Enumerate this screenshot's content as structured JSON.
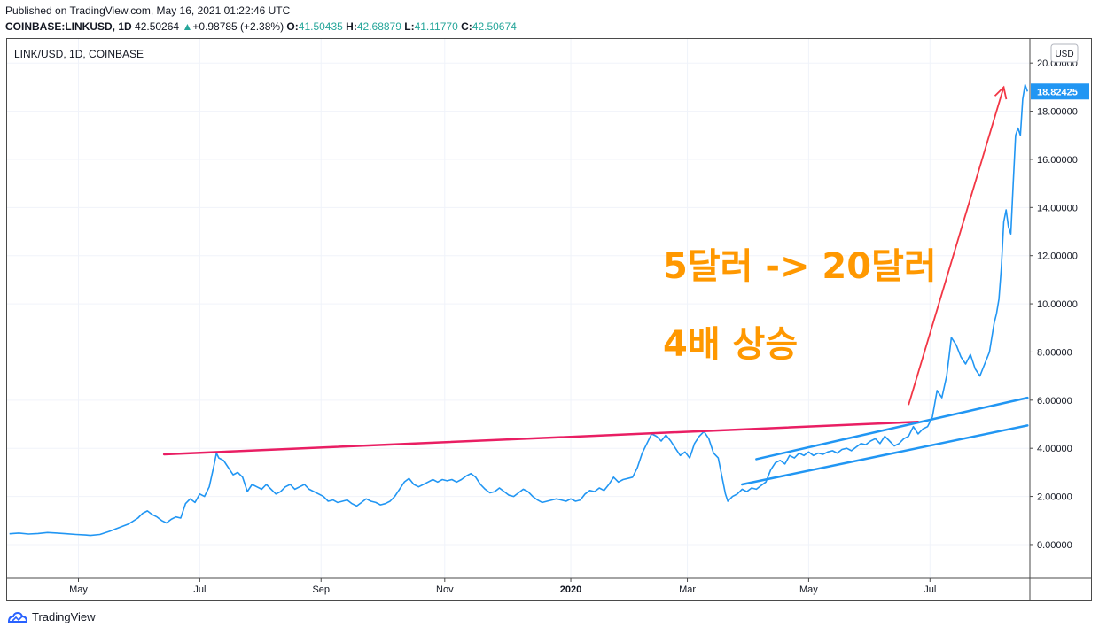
{
  "header": {
    "published": "Published on TradingView.com, May 16, 2021 01:22:46 UTC",
    "symbol": "COINBASE:LINKUSD, 1D",
    "last": "42.50264",
    "change_icon": "triangle-up-icon",
    "change": "+0.98785 (+2.38%)",
    "o_label": "O:",
    "o": "41.50435",
    "h_label": "H:",
    "h": "42.68879",
    "l_label": "L:",
    "l": "41.11770",
    "c_label": "C:",
    "c": "42.50674"
  },
  "colors": {
    "price_line": "#2196f3",
    "resistance_line": "#e91e63",
    "arrow": "#f23645",
    "annotation": "#ff9800",
    "grid": "#f0f3fa",
    "axis_text": "#131722"
  },
  "chart_data": {
    "type": "line",
    "title": "LINK/USD, 1D, COINBASE",
    "currency": "USD",
    "ylabel": "",
    "xlabel": "",
    "ylim": [
      -1.4,
      21.0
    ],
    "y_ticks": [
      "0.00000",
      "2.00000",
      "4.00000",
      "6.00000",
      "8.00000",
      "10.00000",
      "12.00000",
      "14.00000",
      "16.00000",
      "18.00000",
      "20.00000"
    ],
    "x_ticks": [
      "May",
      "Jul",
      "Sep",
      "Nov",
      "2020",
      "Mar",
      "May",
      "Jul"
    ],
    "last_price_label": "18.82425",
    "series": [
      {
        "values": [
          [
            0,
            0.45
          ],
          [
            4,
            0.48
          ],
          [
            8,
            0.44
          ],
          [
            12,
            0.46
          ],
          [
            16,
            0.5
          ],
          [
            20,
            0.48
          ],
          [
            24,
            0.45
          ],
          [
            28,
            0.42
          ],
          [
            32,
            0.4
          ],
          [
            34,
            0.38
          ],
          [
            38,
            0.42
          ],
          [
            42,
            0.55
          ],
          [
            46,
            0.7
          ],
          [
            50,
            0.85
          ],
          [
            54,
            1.1
          ],
          [
            56,
            1.3
          ],
          [
            58,
            1.4
          ],
          [
            60,
            1.25
          ],
          [
            62,
            1.15
          ],
          [
            64,
            1.0
          ],
          [
            66,
            0.9
          ],
          [
            68,
            1.05
          ],
          [
            70,
            1.15
          ],
          [
            72,
            1.1
          ],
          [
            74,
            1.7
          ],
          [
            76,
            1.9
          ],
          [
            78,
            1.75
          ],
          [
            80,
            2.1
          ],
          [
            82,
            2.0
          ],
          [
            84,
            2.4
          ],
          [
            86,
            3.3
          ],
          [
            87,
            3.8
          ],
          [
            88,
            3.6
          ],
          [
            90,
            3.5
          ],
          [
            92,
            3.2
          ],
          [
            94,
            2.9
          ],
          [
            96,
            3.0
          ],
          [
            98,
            2.8
          ],
          [
            100,
            2.2
          ],
          [
            102,
            2.5
          ],
          [
            104,
            2.4
          ],
          [
            106,
            2.3
          ],
          [
            108,
            2.5
          ],
          [
            110,
            2.3
          ],
          [
            112,
            2.1
          ],
          [
            114,
            2.2
          ],
          [
            116,
            2.4
          ],
          [
            118,
            2.5
          ],
          [
            120,
            2.3
          ],
          [
            122,
            2.4
          ],
          [
            124,
            2.5
          ],
          [
            126,
            2.3
          ],
          [
            128,
            2.2
          ],
          [
            130,
            2.1
          ],
          [
            132,
            2.0
          ],
          [
            134,
            1.8
          ],
          [
            136,
            1.85
          ],
          [
            138,
            1.75
          ],
          [
            140,
            1.8
          ],
          [
            142,
            1.85
          ],
          [
            144,
            1.7
          ],
          [
            146,
            1.6
          ],
          [
            148,
            1.75
          ],
          [
            150,
            1.9
          ],
          [
            152,
            1.8
          ],
          [
            154,
            1.75
          ],
          [
            156,
            1.65
          ],
          [
            158,
            1.7
          ],
          [
            160,
            1.8
          ],
          [
            162,
            2.0
          ],
          [
            164,
            2.3
          ],
          [
            166,
            2.6
          ],
          [
            168,
            2.75
          ],
          [
            170,
            2.5
          ],
          [
            172,
            2.4
          ],
          [
            174,
            2.5
          ],
          [
            176,
            2.6
          ],
          [
            178,
            2.7
          ],
          [
            180,
            2.6
          ],
          [
            182,
            2.7
          ],
          [
            184,
            2.65
          ],
          [
            186,
            2.7
          ],
          [
            188,
            2.6
          ],
          [
            190,
            2.7
          ],
          [
            192,
            2.85
          ],
          [
            194,
            2.95
          ],
          [
            196,
            2.8
          ],
          [
            198,
            2.5
          ],
          [
            200,
            2.3
          ],
          [
            202,
            2.15
          ],
          [
            204,
            2.2
          ],
          [
            206,
            2.35
          ],
          [
            208,
            2.2
          ],
          [
            210,
            2.05
          ],
          [
            212,
            2.0
          ],
          [
            214,
            2.15
          ],
          [
            216,
            2.3
          ],
          [
            218,
            2.2
          ],
          [
            220,
            2.0
          ],
          [
            222,
            1.85
          ],
          [
            224,
            1.75
          ],
          [
            226,
            1.8
          ],
          [
            228,
            1.85
          ],
          [
            230,
            1.9
          ],
          [
            232,
            1.85
          ],
          [
            234,
            1.8
          ],
          [
            236,
            1.9
          ],
          [
            238,
            1.8
          ],
          [
            240,
            1.85
          ],
          [
            242,
            2.1
          ],
          [
            244,
            2.25
          ],
          [
            246,
            2.2
          ],
          [
            248,
            2.35
          ],
          [
            250,
            2.25
          ],
          [
            252,
            2.5
          ],
          [
            254,
            2.8
          ],
          [
            256,
            2.6
          ],
          [
            258,
            2.7
          ],
          [
            260,
            2.75
          ],
          [
            262,
            2.8
          ],
          [
            264,
            3.2
          ],
          [
            266,
            3.8
          ],
          [
            268,
            4.2
          ],
          [
            270,
            4.6
          ],
          [
            272,
            4.5
          ],
          [
            274,
            4.3
          ],
          [
            276,
            4.55
          ],
          [
            278,
            4.3
          ],
          [
            280,
            4.0
          ],
          [
            282,
            3.7
          ],
          [
            284,
            3.85
          ],
          [
            286,
            3.6
          ],
          [
            288,
            4.2
          ],
          [
            290,
            4.5
          ],
          [
            292,
            4.7
          ],
          [
            294,
            4.4
          ],
          [
            296,
            3.8
          ],
          [
            298,
            3.6
          ],
          [
            300,
            2.6
          ],
          [
            301,
            2.1
          ],
          [
            302,
            1.8
          ],
          [
            304,
            2.0
          ],
          [
            306,
            2.1
          ],
          [
            308,
            2.3
          ],
          [
            310,
            2.2
          ],
          [
            312,
            2.35
          ],
          [
            314,
            2.3
          ],
          [
            316,
            2.45
          ],
          [
            318,
            2.6
          ],
          [
            320,
            3.1
          ],
          [
            322,
            3.4
          ],
          [
            324,
            3.5
          ],
          [
            326,
            3.35
          ],
          [
            328,
            3.7
          ],
          [
            330,
            3.6
          ],
          [
            332,
            3.8
          ],
          [
            334,
            3.7
          ],
          [
            336,
            3.85
          ],
          [
            338,
            3.7
          ],
          [
            340,
            3.8
          ],
          [
            342,
            3.75
          ],
          [
            344,
            3.85
          ],
          [
            346,
            3.9
          ],
          [
            348,
            3.8
          ],
          [
            350,
            3.95
          ],
          [
            352,
            4.0
          ],
          [
            354,
            3.9
          ],
          [
            356,
            4.05
          ],
          [
            358,
            4.2
          ],
          [
            360,
            4.15
          ],
          [
            362,
            4.3
          ],
          [
            364,
            4.4
          ],
          [
            366,
            4.2
          ],
          [
            368,
            4.5
          ],
          [
            370,
            4.3
          ],
          [
            372,
            4.1
          ],
          [
            374,
            4.2
          ],
          [
            376,
            4.4
          ],
          [
            378,
            4.5
          ],
          [
            380,
            4.9
          ],
          [
            382,
            4.6
          ],
          [
            384,
            4.8
          ],
          [
            386,
            4.9
          ],
          [
            388,
            5.3
          ],
          [
            390,
            6.4
          ],
          [
            392,
            6.1
          ],
          [
            394,
            7.0
          ],
          [
            395,
            7.8
          ],
          [
            396,
            8.6
          ],
          [
            398,
            8.3
          ],
          [
            400,
            7.8
          ],
          [
            402,
            7.5
          ],
          [
            404,
            7.9
          ],
          [
            406,
            7.3
          ],
          [
            408,
            7.0
          ],
          [
            410,
            7.5
          ],
          [
            412,
            8.0
          ],
          [
            414,
            9.2
          ],
          [
            415,
            9.6
          ],
          [
            416,
            10.2
          ],
          [
            417,
            11.5
          ],
          [
            418,
            13.4
          ],
          [
            419,
            13.9
          ],
          [
            420,
            13.2
          ],
          [
            421,
            12.9
          ],
          [
            422,
            15.0
          ],
          [
            423,
            17.0
          ],
          [
            424,
            17.3
          ],
          [
            425,
            17.0
          ],
          [
            426,
            18.5
          ],
          [
            427,
            19.1
          ],
          [
            428,
            18.82
          ]
        ]
      }
    ],
    "annotations": [
      {
        "type": "trendline",
        "points": [
          [
            65,
            3.75
          ],
          [
            382,
            5.1
          ]
        ],
        "color": "#e91e63"
      },
      {
        "type": "trendline",
        "points": [
          [
            314,
            3.55
          ],
          [
            428,
            6.1
          ]
        ],
        "color": "#2196f3"
      },
      {
        "type": "trendline",
        "points": [
          [
            308,
            2.5
          ],
          [
            428,
            4.95
          ]
        ],
        "color": "#2196f3"
      },
      {
        "type": "arrow",
        "points": [
          [
            378,
            5.8
          ],
          [
            418,
            19.0
          ]
        ],
        "color": "#f23645"
      }
    ],
    "annotation_text": [
      "5달러 -> 20달러",
      "4배 상승"
    ]
  },
  "footer": {
    "brand": "TradingView",
    "logo_icon": "tradingview-logo-icon"
  }
}
